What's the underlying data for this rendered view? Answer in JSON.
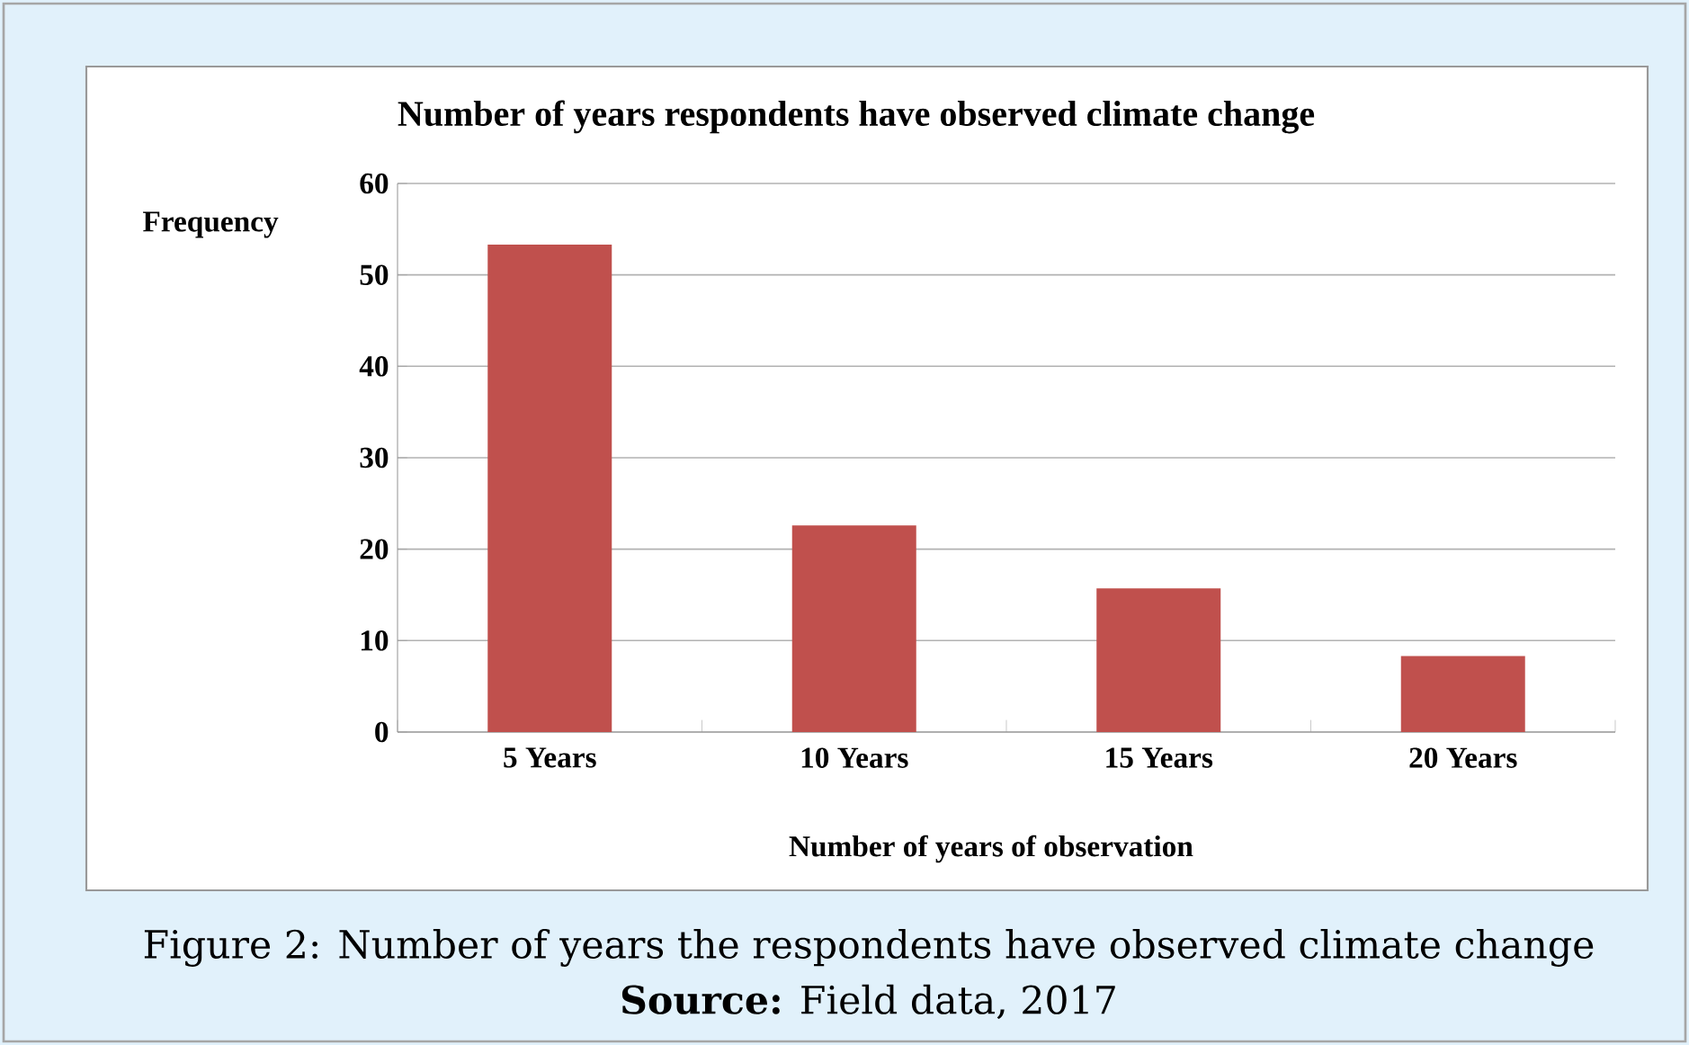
{
  "chart_data": {
    "type": "bar",
    "title": "Number of years respondents have observed climate change",
    "xlabel": "Number of years of observation",
    "ylabel": "Frequency",
    "categories": [
      "5 Years",
      "10 Years",
      "15 Years",
      "20 Years"
    ],
    "values": [
      53.3,
      22.6,
      15.7,
      8.3
    ],
    "color": "#c0504d",
    "ylim": [
      0,
      60
    ],
    "yticks": [
      0,
      10,
      20,
      30,
      40,
      50,
      60
    ],
    "grid": "y",
    "annotations": [
      "Figure 2: Number of years the respondents have observed climate change",
      "**Source:** Field data, 2017"
    ]
  }
}
